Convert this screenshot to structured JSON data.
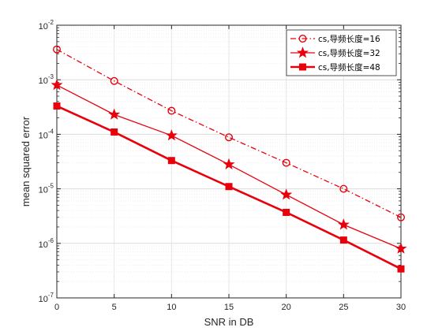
{
  "chart_data": {
    "type": "line",
    "xlabel": "SNR in DB",
    "ylabel": "mean squared error",
    "x": [
      0,
      5,
      10,
      15,
      20,
      25,
      30
    ],
    "xlim": [
      0,
      30
    ],
    "ylim": [
      1e-07,
      0.01
    ],
    "yscale": "log",
    "x_ticks": [
      "0",
      "5",
      "10",
      "15",
      "20",
      "25",
      "30"
    ],
    "y_ticks": [
      {
        "base": "10",
        "exp": "-7"
      },
      {
        "base": "10",
        "exp": "-6"
      },
      {
        "base": "10",
        "exp": "-5"
      },
      {
        "base": "10",
        "exp": "-4"
      },
      {
        "base": "10",
        "exp": "-3"
      },
      {
        "base": "10",
        "exp": "-2"
      }
    ],
    "grid": true,
    "legend_position": "top-right",
    "series": [
      {
        "name": "cs,导频长度=16",
        "color": "#e8000b",
        "line_style": "dash-dot",
        "marker": "circle",
        "values": [
          0.0036,
          0.00095,
          0.00027,
          8.8e-05,
          3e-05,
          1e-05,
          3e-06
        ]
      },
      {
        "name": "cs,导频长度=32",
        "color": "#e8000b",
        "line_style": "solid",
        "marker": "star",
        "values": [
          0.0008,
          0.00023,
          9.5e-05,
          2.8e-05,
          7.8e-06,
          2.2e-06,
          8e-07
        ]
      },
      {
        "name": "cs,导频长度=48",
        "color": "#e8000b",
        "line_style": "solid-thick",
        "marker": "square",
        "values": [
          0.00033,
          0.00011,
          3.3e-05,
          1.1e-05,
          3.7e-06,
          1.15e-06,
          3.4e-07
        ]
      }
    ]
  }
}
